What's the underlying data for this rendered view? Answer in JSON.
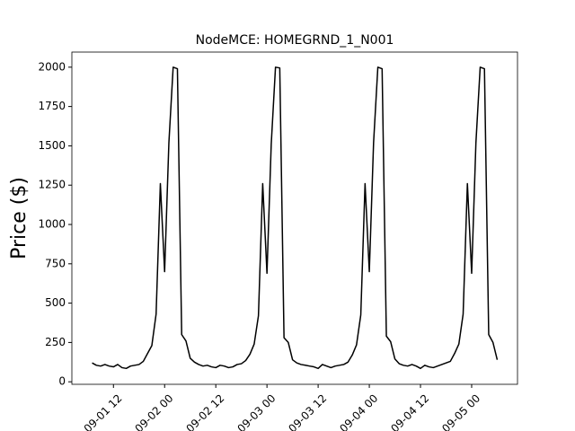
{
  "chart_data": {
    "type": "line",
    "title": "NodeMCE: HOMEGRND_1_N001",
    "y_label": "Price ($)",
    "x": [
      "09-01 07",
      "09-01 08",
      "09-01 09",
      "09-01 10",
      "09-01 11",
      "09-01 12",
      "09-01 13",
      "09-01 14",
      "09-01 15",
      "09-01 16",
      "09-01 17",
      "09-01 18",
      "09-01 19",
      "09-01 20",
      "09-01 21",
      "09-01 22",
      "09-01 23",
      "09-02 00",
      "09-02 01",
      "09-02 02",
      "09-02 03",
      "09-02 04",
      "09-02 05",
      "09-02 06",
      "09-02 07",
      "09-02 08",
      "09-02 09",
      "09-02 10",
      "09-02 11",
      "09-02 12",
      "09-02 13",
      "09-02 14",
      "09-02 15",
      "09-02 16",
      "09-02 17",
      "09-02 18",
      "09-02 19",
      "09-02 20",
      "09-02 21",
      "09-02 22",
      "09-02 23",
      "09-03 00",
      "09-03 01",
      "09-03 02",
      "09-03 03",
      "09-03 04",
      "09-03 05",
      "09-03 06",
      "09-03 07",
      "09-03 08",
      "09-03 09",
      "09-03 10",
      "09-03 11",
      "09-03 12",
      "09-03 13",
      "09-03 14",
      "09-03 15",
      "09-03 16",
      "09-03 17",
      "09-03 18",
      "09-03 19",
      "09-03 20",
      "09-03 21",
      "09-03 22",
      "09-03 23",
      "09-04 00",
      "09-04 01",
      "09-04 02",
      "09-04 03",
      "09-04 04",
      "09-04 05",
      "09-04 06",
      "09-04 07",
      "09-04 08",
      "09-04 09",
      "09-04 10",
      "09-04 11",
      "09-04 12",
      "09-04 13",
      "09-04 14",
      "09-04 15",
      "09-04 16",
      "09-04 17",
      "09-04 18",
      "09-04 19",
      "09-04 20",
      "09-04 21",
      "09-04 22",
      "09-04 23",
      "09-05 00",
      "09-05 01",
      "09-05 02",
      "09-05 03",
      "09-05 04",
      "09-05 05",
      "09-05 06"
    ],
    "series": [
      {
        "name": "Price",
        "color": "#000000",
        "values": [
          120,
          105,
          100,
          110,
          100,
          95,
          110,
          90,
          85,
          100,
          105,
          110,
          130,
          180,
          230,
          430,
          1260,
          700,
          1520,
          2000,
          1990,
          300,
          260,
          150,
          125,
          110,
          100,
          105,
          95,
          90,
          105,
          100,
          90,
          95,
          110,
          115,
          135,
          175,
          240,
          420,
          1260,
          690,
          1510,
          2000,
          1995,
          280,
          250,
          140,
          120,
          110,
          105,
          100,
          95,
          85,
          110,
          100,
          90,
          100,
          105,
          110,
          125,
          170,
          235,
          425,
          1260,
          700,
          1520,
          2000,
          1990,
          290,
          255,
          145,
          115,
          105,
          100,
          110,
          100,
          85,
          105,
          95,
          90,
          100,
          110,
          120,
          130,
          180,
          240,
          430,
          1260,
          690,
          1520,
          2000,
          1990,
          300,
          250,
          140
        ]
      }
    ],
    "xlim": [
      "09-01 02:15",
      "09-05 10:45"
    ],
    "xticks": [
      "09-01 12",
      "09-02 00",
      "09-02 12",
      "09-03 00",
      "09-03 12",
      "09-04 00",
      "09-04 12",
      "09-05 00"
    ],
    "ylim": [
      -16,
      2096
    ],
    "yticks": [
      0,
      250,
      500,
      750,
      1000,
      1250,
      1500,
      1750,
      2000
    ]
  }
}
